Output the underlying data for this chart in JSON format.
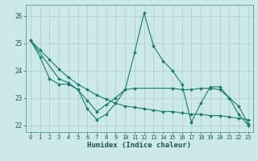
{
  "xlabel": "Humidex (Indice chaleur)",
  "bg_color": "#cce8e8",
  "grid_color": "#aacccc",
  "line_color": "#1a7a6e",
  "xlim": [
    -0.5,
    23.5
  ],
  "ylim": [
    21.75,
    26.4
  ],
  "yticks": [
    22,
    23,
    24,
    25,
    26
  ],
  "xticks": [
    0,
    1,
    2,
    3,
    4,
    5,
    6,
    7,
    8,
    9,
    10,
    11,
    12,
    13,
    14,
    15,
    16,
    17,
    18,
    19,
    20,
    21,
    22,
    23
  ],
  "series1_x": [
    0,
    1,
    2,
    3,
    4,
    5,
    6,
    7,
    8,
    9,
    10,
    11,
    12,
    13,
    14,
    15,
    16,
    17,
    18,
    19,
    20,
    21,
    22,
    23
  ],
  "series1_y": [
    25.1,
    24.5,
    23.7,
    23.5,
    23.5,
    23.3,
    22.6,
    22.2,
    22.4,
    22.8,
    23.3,
    24.65,
    26.1,
    24.9,
    24.35,
    24.0,
    23.5,
    22.1,
    22.8,
    23.4,
    23.4,
    23.0,
    22.4,
    22.0
  ],
  "series2_x": [
    0,
    1,
    2,
    3,
    4,
    5,
    6,
    7,
    8,
    9,
    10,
    11,
    12,
    13,
    14,
    15,
    16,
    17,
    18,
    19,
    20,
    21,
    22,
    23
  ],
  "series2_y": [
    25.1,
    24.75,
    24.4,
    24.05,
    23.75,
    23.5,
    23.3,
    23.1,
    22.95,
    22.8,
    22.7,
    22.65,
    22.6,
    22.55,
    22.5,
    22.5,
    22.45,
    22.4,
    22.4,
    22.35,
    22.35,
    22.3,
    22.25,
    22.2
  ],
  "series3_x": [
    0,
    3,
    4,
    5,
    6,
    7,
    8,
    9,
    10,
    11,
    15,
    16,
    17,
    18,
    19,
    20,
    21,
    22,
    23
  ],
  "series3_y": [
    25.1,
    23.7,
    23.55,
    23.3,
    22.9,
    22.5,
    22.75,
    23.0,
    23.3,
    23.35,
    23.35,
    23.3,
    23.3,
    23.35,
    23.35,
    23.3,
    23.0,
    22.7,
    22.05
  ]
}
